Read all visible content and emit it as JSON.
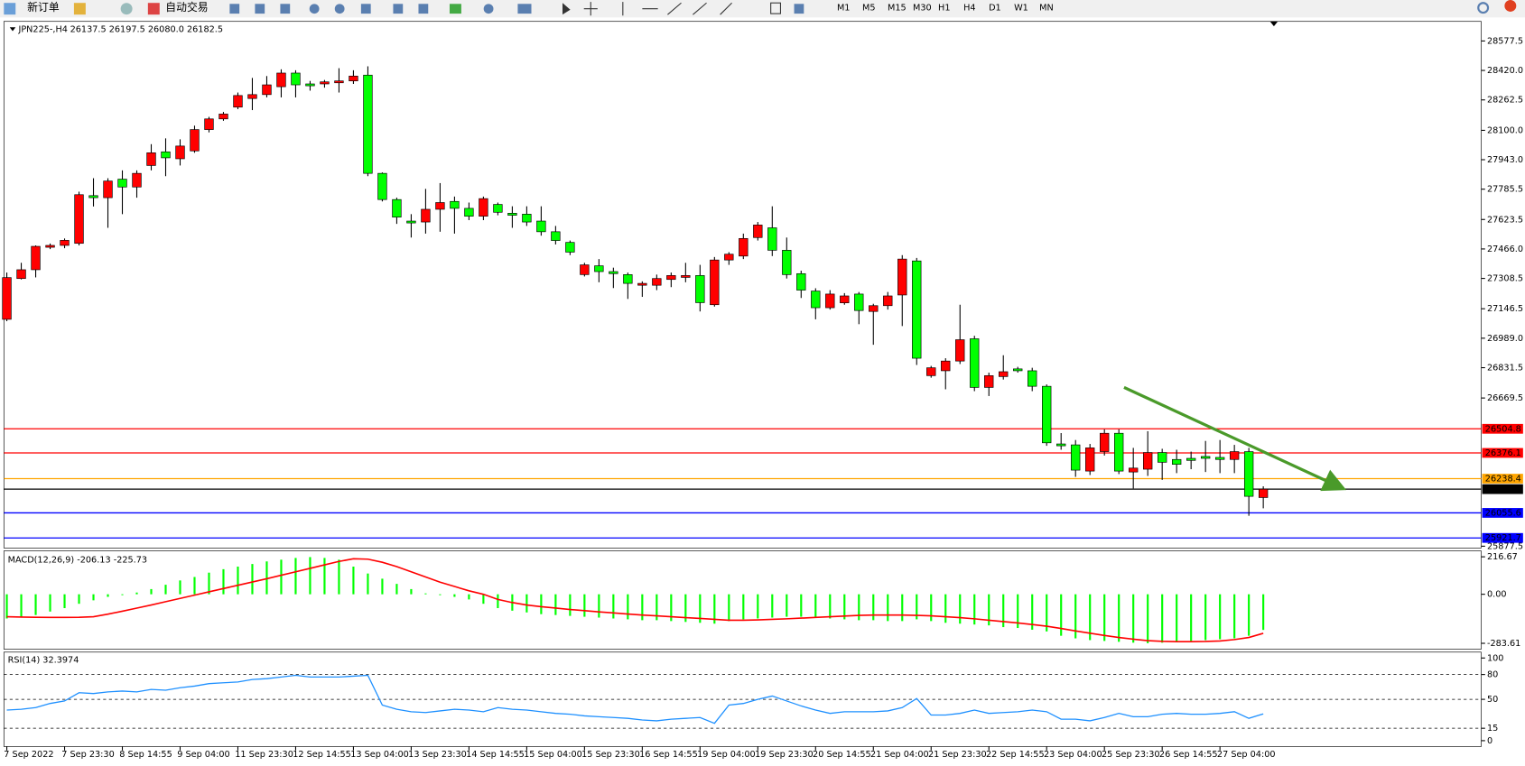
{
  "toolbar": {
    "buttons": [
      "新订单",
      "自动交易"
    ],
    "timeframes": [
      "M1",
      "M5",
      "M15",
      "M30",
      "H1",
      "H4",
      "D1",
      "W1",
      "MN"
    ]
  },
  "chart_data": [
    {
      "type": "candlestick",
      "title": "JPN225-,H4",
      "subtitle": "26137.5 26197.5 26080.0 26182.5",
      "categories": [
        "7 Sep 2022",
        null,
        null,
        null,
        "7 Sep 23:30",
        null,
        null,
        null,
        "8 Sep 14:55",
        null,
        null,
        null,
        "9 Sep 04:00",
        null,
        null,
        null,
        "11 Sep 23:30",
        null,
        null,
        null,
        "12 Sep 14:55",
        null,
        null,
        null,
        "13 Sep 04:00",
        null,
        null,
        null,
        "13 Sep 23:30",
        null,
        null,
        null,
        "14 Sep 14:55",
        null,
        null,
        null,
        "15 Sep 04:00",
        null,
        null,
        null,
        "15 Sep 23:30",
        null,
        null,
        null,
        "16 Sep 14:55",
        null,
        null,
        null,
        "19 Sep 04:00",
        null,
        null,
        null,
        "19 Sep 23:30",
        null,
        null,
        null,
        "20 Sep 14:55",
        null,
        null,
        null,
        "21 Sep 04:00",
        null,
        null,
        null,
        "21 Sep 23:30",
        null,
        null,
        null,
        "22 Sep 14:55",
        null,
        null,
        null,
        "23 Sep 04:00",
        null,
        null,
        null,
        "25 Sep 23:30",
        null,
        null,
        null,
        "26 Sep 14:55",
        null,
        null,
        null,
        "27 Sep 04:00",
        null,
        null,
        null
      ],
      "open": [
        27090,
        27308,
        27355,
        27475,
        27485,
        27496,
        27751,
        27740,
        27839,
        27797,
        27912,
        27985,
        27948,
        27990,
        28104,
        28161,
        28224,
        28270,
        28291,
        28333,
        28406,
        28348,
        28348,
        28354,
        28364,
        28395,
        27870,
        27730,
        27615,
        27610,
        27678,
        27720,
        27683,
        27641,
        27704,
        27657,
        27652,
        27615,
        27558,
        27501,
        27329,
        27376,
        27345,
        27329,
        27272,
        27272,
        27303,
        27314,
        27324,
        27168,
        27407,
        27428,
        27527,
        27579,
        27459,
        27334,
        27241,
        27152,
        27178,
        27225,
        27132,
        27163,
        27220,
        27402,
        26789,
        26815,
        26867,
        26986,
        26726,
        26784,
        26825,
        26815,
        26732,
        26424,
        26419,
        26279,
        26383,
        26481,
        26274,
        26289,
        26378,
        26341,
        26347,
        26357,
        26352,
        26341,
        26383,
        26137.5
      ],
      "high": [
        27340,
        27392,
        27485,
        27495,
        27522,
        27772,
        27844,
        27844,
        27886,
        27886,
        28026,
        28057,
        28052,
        28125,
        28172,
        28198,
        28302,
        28380,
        28390,
        28426,
        28421,
        28364,
        28369,
        28432,
        28421,
        28442,
        27875,
        27740,
        27652,
        27787,
        27818,
        27746,
        27714,
        27746,
        27714,
        27694,
        27694,
        27694,
        27589,
        27511,
        27392,
        27412,
        27366,
        27340,
        27293,
        27329,
        27340,
        27392,
        27381,
        27423,
        27449,
        27548,
        27610,
        27694,
        27527,
        27350,
        27256,
        27246,
        27230,
        27236,
        27173,
        27236,
        27433,
        27418,
        26841,
        26882,
        27168,
        27002,
        26805,
        26898,
        26836,
        26831,
        26742,
        26482,
        26445,
        26424,
        26502,
        26502,
        26403,
        26492,
        26398,
        26393,
        26383,
        26440,
        26445,
        26419,
        26403,
        26197.5
      ],
      "low": [
        27080,
        27303,
        27314,
        27465,
        27470,
        27485,
        27693,
        27579,
        27652,
        27740,
        27886,
        27855,
        27912,
        27980,
        28089,
        28151,
        28213,
        28208,
        28276,
        28276,
        28276,
        28312,
        28328,
        28302,
        28348,
        27855,
        27720,
        27600,
        27527,
        27548,
        27558,
        27548,
        27620,
        27620,
        27646,
        27579,
        27589,
        27537,
        27490,
        27433,
        27319,
        27288,
        27257,
        27199,
        27210,
        27246,
        27262,
        27288,
        27132,
        27158,
        27381,
        27412,
        27511,
        27428,
        27308,
        27204,
        27090,
        27142,
        27168,
        27064,
        26954,
        27142,
        27054,
        26846,
        26778,
        26716,
        26851,
        26706,
        26680,
        26768,
        26805,
        26706,
        26414,
        26393,
        26248,
        26258,
        26362,
        26263,
        26186,
        26253,
        26232,
        26268,
        26289,
        26274,
        26268,
        26268,
        26040,
        26080
      ],
      "close": [
        27313,
        27355,
        27480,
        27485,
        27512,
        27756,
        27740,
        27829,
        27797,
        27870,
        27980,
        27953,
        28016,
        28104,
        28161,
        28187,
        28286,
        28291,
        28343,
        28406,
        28343,
        28338,
        28359,
        28364,
        28390,
        27870,
        27730,
        27636,
        27605,
        27678,
        27714,
        27683,
        27641,
        27735,
        27662,
        27646,
        27610,
        27558,
        27511,
        27449,
        27381,
        27345,
        27334,
        27282,
        27282,
        27308,
        27324,
        27324,
        27179,
        27407,
        27438,
        27522,
        27594,
        27459,
        27329,
        27246,
        27152,
        27225,
        27215,
        27137,
        27163,
        27215,
        27412,
        26882,
        26831,
        26867,
        26981,
        26726,
        26789,
        26810,
        26815,
        26732,
        26430,
        26414,
        26284,
        26403,
        26481,
        26279,
        26295,
        26378,
        26326,
        26315,
        26336,
        26347,
        26341,
        26383,
        26144,
        26182.5
      ],
      "up_color": "#ff0000",
      "down_color": "#00ff00",
      "ylim": [
        25868,
        28682
      ],
      "yticks": [
        28577.5,
        {
          "value": 28420,
          "label": "28420.0"
        },
        28262.5,
        {
          "value": 28100,
          "label": "28100.0"
        },
        {
          "value": 27943,
          "label": "27943.0"
        },
        27785.5,
        27623.5,
        {
          "value": 27466,
          "label": "27466.0"
        },
        27308.5,
        27146.5,
        {
          "value": 26989,
          "label": "26989.0"
        },
        26831.5,
        26669.5,
        25877.5
      ],
      "hlines": [
        {
          "value": 26504.8,
          "color": "#ff0000"
        },
        {
          "value": 26376.1,
          "color": "#ff0000"
        },
        {
          "value": 26238.4,
          "color": "#ffa500"
        },
        {
          "value": 26182.5,
          "color": "#000000"
        },
        {
          "value": 26055.6,
          "color": "#0000ff"
        },
        {
          "value": 25921.7,
          "color": "#0000ff"
        }
      ]
    },
    {
      "type": "macd",
      "title": "MACD(12,26,9) -206.13 -225.73",
      "histogram": {
        "color": "#00ff00",
        "values": [
          -140,
          -130,
          -120,
          -100,
          -80,
          -55,
          -35,
          -15,
          -5,
          10,
          30,
          55,
          80,
          100,
          125,
          145,
          160,
          175,
          190,
          200,
          210,
          215,
          210,
          200,
          160,
          120,
          90,
          60,
          30,
          5,
          -5,
          -15,
          -30,
          -55,
          -80,
          -95,
          -105,
          -115,
          -120,
          -125,
          -130,
          -135,
          -140,
          -145,
          -150,
          -150,
          -155,
          -160,
          -165,
          -170,
          -155,
          -145,
          -140,
          -135,
          -130,
          -130,
          -135,
          -140,
          -145,
          -150,
          -150,
          -155,
          -155,
          -145,
          -155,
          -165,
          -170,
          -175,
          -180,
          -190,
          -195,
          -205,
          -215,
          -240,
          -255,
          -265,
          -270,
          -275,
          -280,
          -283,
          -280,
          -275,
          -270,
          -265,
          -260,
          -255,
          -240,
          -206.13
        ]
      },
      "signal": {
        "color": "#ff0000",
        "values": [
          -130,
          -132,
          -133,
          -134,
          -134,
          -133,
          -130,
          -115,
          -98,
          -80,
          -62,
          -43,
          -24,
          -5,
          14,
          33,
          52,
          71,
          90,
          110,
          130,
          150,
          170,
          190,
          205,
          203,
          185,
          160,
          130,
          100,
          70,
          45,
          20,
          0,
          -30,
          -48,
          -62,
          -72,
          -80,
          -88,
          -95,
          -102,
          -108,
          -114,
          -120,
          -125,
          -130,
          -135,
          -140,
          -145,
          -150,
          -150,
          -148,
          -145,
          -142,
          -138,
          -134,
          -130,
          -126,
          -122,
          -120,
          -120,
          -120,
          -122,
          -125,
          -130,
          -135,
          -142,
          -150,
          -158,
          -166,
          -175,
          -185,
          -198,
          -212,
          -225,
          -238,
          -250,
          -260,
          -268,
          -272,
          -274,
          -274,
          -273,
          -270,
          -262,
          -250,
          -225.73
        ]
      },
      "ylim": [
        -317.7,
        250.8
      ],
      "yticks": [
        216.67,
        {
          "value": 0,
          "label": "0.00"
        },
        -283.61
      ]
    },
    {
      "type": "line",
      "title": "RSI(14) 32.3974",
      "color": "#1e90ff",
      "values": [
        37,
        38,
        40,
        45,
        48,
        58,
        57,
        59,
        60,
        59,
        62,
        61,
        64,
        66,
        69,
        70,
        71,
        74,
        75,
        77,
        79,
        77,
        77,
        77,
        78,
        79,
        43,
        38,
        35,
        34,
        36,
        38,
        37,
        35,
        40,
        38,
        37,
        35,
        33,
        32,
        30,
        29,
        28,
        27,
        25,
        24,
        26,
        27,
        28,
        21,
        43,
        45,
        50,
        54,
        48,
        42,
        37,
        33,
        35,
        35,
        35,
        36,
        40,
        51,
        31,
        31,
        33,
        37,
        33,
        34,
        35,
        37,
        35,
        26,
        26,
        24,
        28,
        33,
        29,
        29,
        32,
        33,
        32,
        32,
        33,
        35,
        27,
        32.3974
      ],
      "ylim": [
        -7.1,
        107.1
      ],
      "yticks": [
        100,
        80,
        50,
        15,
        0
      ],
      "levels": [
        80,
        50,
        15
      ]
    }
  ]
}
